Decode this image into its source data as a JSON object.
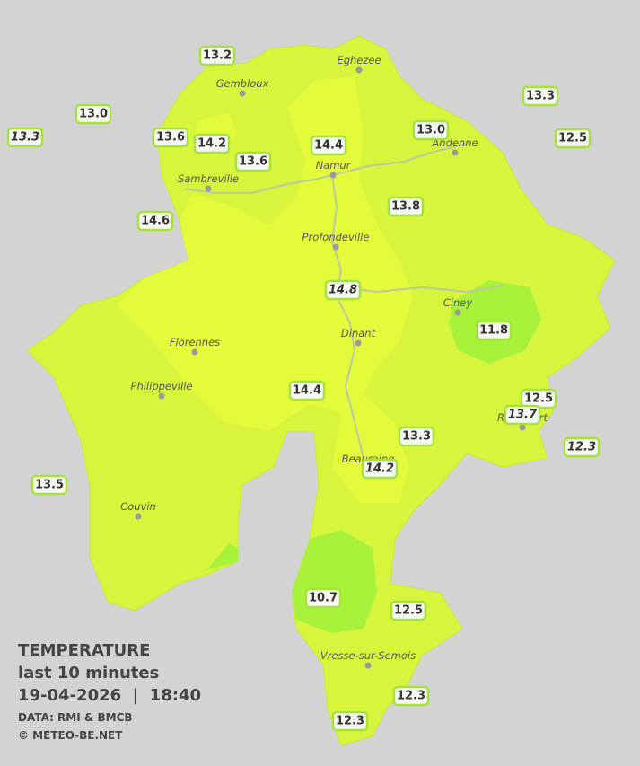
{
  "cities": [
    "Eghezee",
    "Gembloux",
    "Andenne",
    "Namur",
    "Sambreville",
    "Profondeville",
    "Ciney",
    "Dinant",
    "Florennes",
    "Philippeville",
    "Rochefort",
    "Beauraing",
    "Couvin",
    "Vresse-sur-Semois"
  ],
  "stations": [
    "13.2",
    "13.0",
    "13.3",
    "13.6",
    "14.2",
    "13.6",
    "14.4",
    "13.0",
    "13.3",
    "12.5",
    "14.6",
    "13.8",
    "14.8",
    "11.8",
    "14.4",
    "12.5",
    "13.7",
    "13.3",
    "12.3",
    "14.2",
    "13.5",
    "10.7",
    "12.5",
    "12.3",
    "12.3"
  ],
  "legend": {
    "title": "TEMPERATURE",
    "period": "last 10 minutes",
    "datetime": "19-04-2026  |  18:40",
    "source": "DATA: RMI & BMCB",
    "copyright": "© METEO-BE.NET"
  }
}
